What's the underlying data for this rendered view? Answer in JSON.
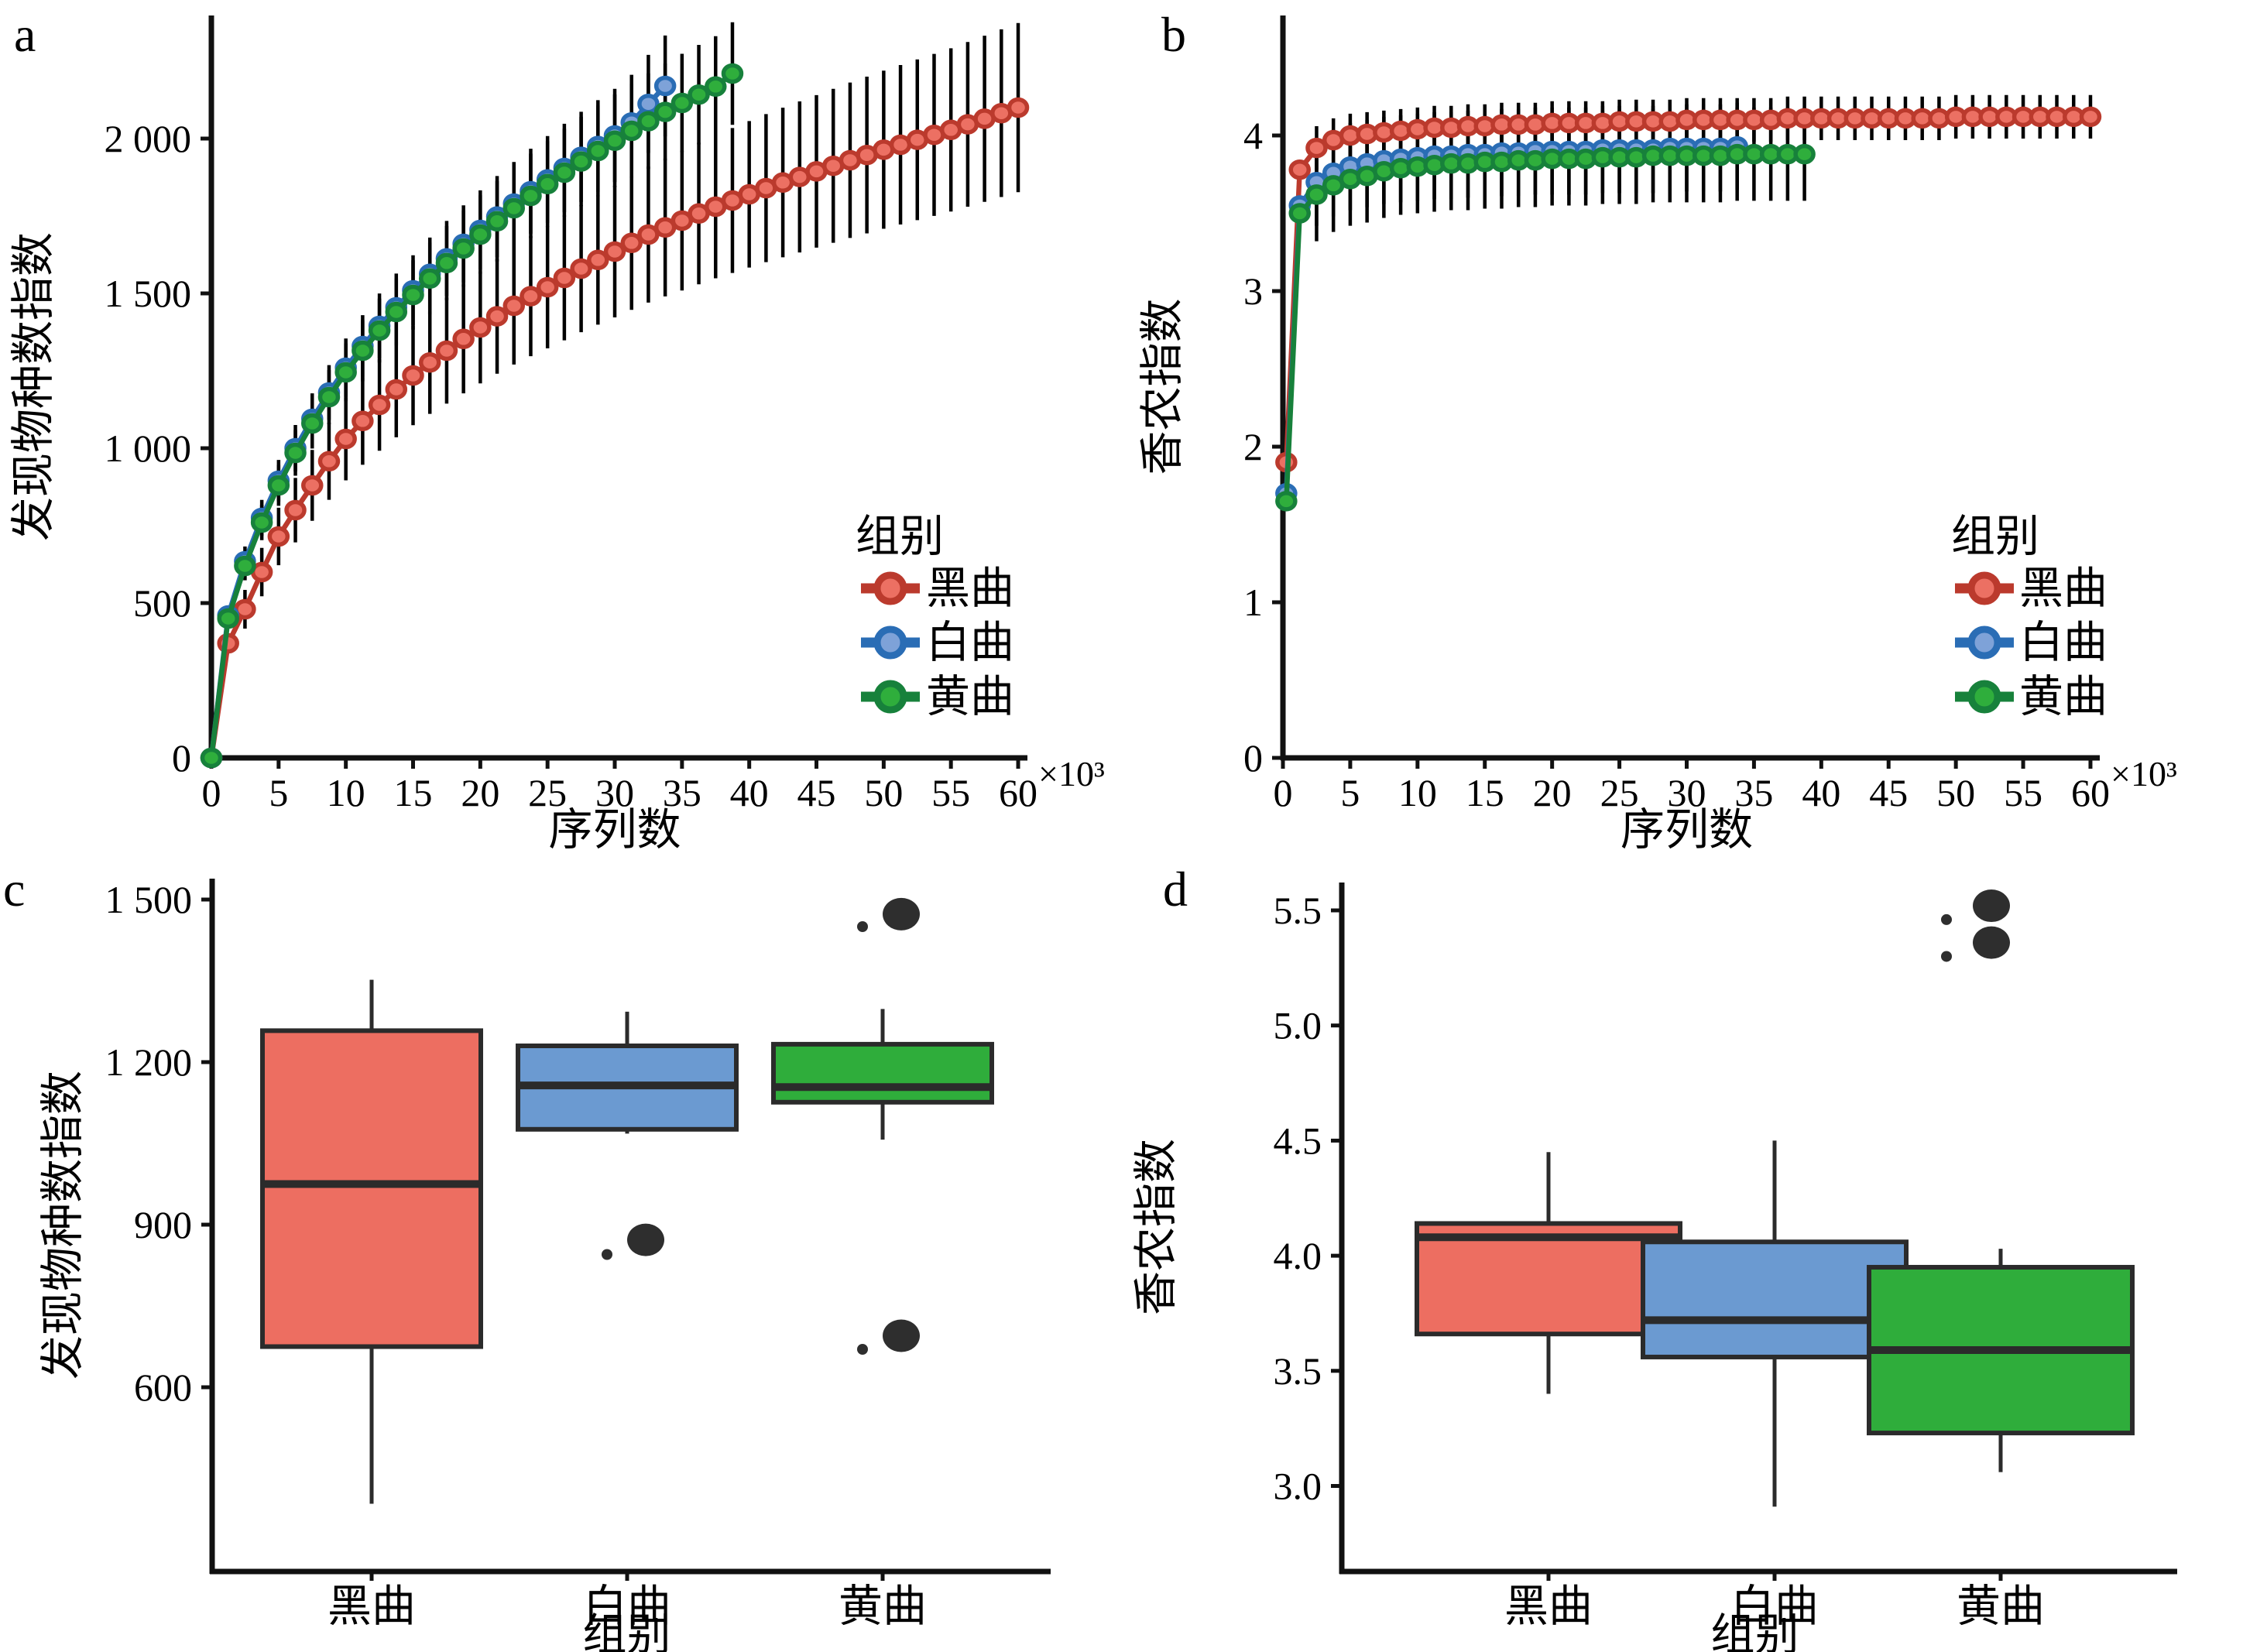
{
  "figure_title": "",
  "panel_letters": [
    "a",
    "b",
    "c",
    "d"
  ],
  "colors": {
    "black_qu_line": "#bb3a2d",
    "black_qu_fill": "#ec7063",
    "black_qu_box": "#ed6e61",
    "white_qu_line": "#2a6db5",
    "white_qu_fill": "#7ea2d8",
    "white_qu_box": "#6b9ad1",
    "yellow_qu_line": "#17813b",
    "yellow_qu_fill": "#2fae3c",
    "yellow_qu_box": "#2fad3b",
    "axis": "#111111",
    "error_bar": "#000000",
    "box_stroke": "#2b2b2b",
    "outlier": "#2e2e2e"
  },
  "chart_data": [
    {
      "panel": "a",
      "letter": "a",
      "type": "line",
      "xlabel": "序列数",
      "ylabel": "发现物种数指数",
      "x_suffix": "×10³",
      "legend_title": "组别",
      "legend_position": "inside-right-lower",
      "grid": false,
      "xlim": [
        0,
        62
      ],
      "ylim": [
        0,
        2430
      ],
      "xticks": [
        0,
        5,
        10,
        15,
        20,
        25,
        30,
        35,
        40,
        45,
        50,
        55,
        60
      ],
      "xtick_labels": [
        "0",
        "5",
        "10",
        "15",
        "20",
        "25",
        "30",
        "35",
        "40",
        "45",
        "50",
        "55",
        "60"
      ],
      "yticks": [
        0,
        500,
        1000,
        1500,
        2000
      ],
      "ytick_labels": [
        "0",
        "500",
        "1 000",
        "1 500",
        "2 000"
      ],
      "series": [
        {
          "name": "黑曲",
          "line_color": "#bb3a2d",
          "fill_color": "#ec7063",
          "err_frac": 0.13,
          "x": [
            0,
            1.25,
            2.5,
            3.75,
            5,
            6.25,
            7.5,
            8.75,
            10,
            11.25,
            12.5,
            13.75,
            15,
            16.25,
            17.5,
            18.75,
            20,
            21.25,
            22.5,
            23.75,
            25,
            26.25,
            27.5,
            28.75,
            30,
            31.25,
            32.5,
            33.75,
            35,
            36.25,
            37.5,
            38.75,
            40,
            41.25,
            42.5,
            43.75,
            45,
            46.25,
            47.5,
            48.75,
            50,
            51.25,
            52.5,
            53.75,
            55,
            56.25,
            57.5,
            58.75,
            60
          ],
          "y": [
            0,
            370,
            480,
            600,
            715,
            800,
            880,
            958,
            1030,
            1088,
            1140,
            1190,
            1235,
            1277,
            1315,
            1353,
            1390,
            1426,
            1460,
            1491,
            1520,
            1550,
            1580,
            1608,
            1635,
            1663,
            1690,
            1713,
            1735,
            1758,
            1780,
            1800,
            1820,
            1840,
            1858,
            1876,
            1894,
            1912,
            1930,
            1947,
            1964,
            1980,
            1996,
            2012,
            2028,
            2046,
            2064,
            2082,
            2100
          ]
        },
        {
          "name": "白曲",
          "line_color": "#2a6db5",
          "fill_color": "#7ea2d8",
          "err_frac": 0.075,
          "x": [
            0,
            1.25,
            2.5,
            3.75,
            5,
            6.25,
            7.5,
            8.75,
            10,
            11.25,
            12.5,
            13.75,
            15,
            16.25,
            17.5,
            18.75,
            20,
            21.25,
            22.5,
            23.75,
            25,
            26.25,
            27.5,
            28.75,
            30,
            31.25,
            32.5,
            33.75
          ],
          "y": [
            0,
            460,
            635,
            775,
            895,
            1000,
            1095,
            1180,
            1260,
            1330,
            1395,
            1455,
            1510,
            1563,
            1613,
            1660,
            1705,
            1748,
            1790,
            1830,
            1868,
            1905,
            1941,
            1976,
            2010,
            2052,
            2112,
            2170
          ]
        },
        {
          "name": "黄曲",
          "line_color": "#17813b",
          "fill_color": "#2fae3c",
          "err_frac": 0.075,
          "x": [
            0,
            1.25,
            2.5,
            3.75,
            5,
            6.25,
            7.5,
            8.75,
            10,
            11.25,
            12.5,
            13.75,
            15,
            16.25,
            17.5,
            18.75,
            20,
            21.25,
            22.5,
            23.75,
            25,
            26.25,
            27.5,
            28.75,
            30,
            31.25,
            32.5,
            33.75,
            35,
            36.25,
            37.5,
            38.75
          ],
          "y": [
            0,
            450,
            620,
            760,
            880,
            985,
            1080,
            1165,
            1245,
            1315,
            1380,
            1440,
            1495,
            1548,
            1598,
            1645,
            1690,
            1733,
            1775,
            1815,
            1853,
            1890,
            1926,
            1960,
            1993,
            2025,
            2056,
            2086,
            2115,
            2142,
            2168,
            2210
          ]
        }
      ]
    },
    {
      "panel": "b",
      "letter": "b",
      "type": "line",
      "xlabel": "序列数",
      "ylabel": "香农指数",
      "x_suffix": "×10³",
      "legend_title": "组别",
      "legend_position": "inside-right-lower",
      "grid": false,
      "xlim": [
        0,
        62
      ],
      "ylim": [
        0,
        4.6
      ],
      "xticks": [
        0,
        5,
        10,
        15,
        20,
        25,
        30,
        35,
        40,
        45,
        50,
        55,
        60
      ],
      "xtick_labels": [
        "0",
        "5",
        "10",
        "15",
        "20",
        "25",
        "30",
        "35",
        "40",
        "45",
        "50",
        "55",
        "60"
      ],
      "yticks": [
        0,
        1,
        2,
        3,
        4
      ],
      "ytick_labels": [
        "0",
        "1",
        "2",
        "3",
        "4"
      ],
      "series": [
        {
          "name": "黑曲",
          "line_color": "#bb3a2d",
          "fill_color": "#ec7063",
          "err_abs": 0.14,
          "x": [
            0.25,
            1.25,
            2.5,
            3.75,
            5,
            6.25,
            7.5,
            8.75,
            10,
            11.25,
            12.5,
            13.75,
            15,
            16.25,
            17.5,
            18.75,
            20,
            21.25,
            22.5,
            23.75,
            25,
            26.25,
            27.5,
            28.75,
            30,
            31.25,
            32.5,
            33.75,
            35,
            36.25,
            37.5,
            38.75,
            40,
            41.25,
            42.5,
            43.75,
            45,
            46.25,
            47.5,
            48.75,
            50,
            51.25,
            52.5,
            53.75,
            55,
            56.25,
            57.5,
            58.75,
            60
          ],
          "y": [
            1.9,
            3.78,
            3.92,
            3.97,
            4.0,
            4.01,
            4.02,
            4.03,
            4.04,
            4.05,
            4.05,
            4.06,
            4.06,
            4.07,
            4.07,
            4.07,
            4.08,
            4.08,
            4.08,
            4.08,
            4.09,
            4.09,
            4.09,
            4.09,
            4.1,
            4.1,
            4.1,
            4.1,
            4.1,
            4.1,
            4.11,
            4.11,
            4.11,
            4.11,
            4.11,
            4.11,
            4.11,
            4.11,
            4.11,
            4.11,
            4.12,
            4.12,
            4.12,
            4.12,
            4.12,
            4.12,
            4.12,
            4.12,
            4.12
          ]
        },
        {
          "name": "白曲",
          "line_color": "#2a6db5",
          "fill_color": "#7ea2d8",
          "err_abs": 0.28,
          "x": [
            0.25,
            1.25,
            2.5,
            3.75,
            5,
            6.25,
            7.5,
            8.75,
            10,
            11.25,
            12.5,
            13.75,
            15,
            16.25,
            17.5,
            18.75,
            20,
            21.25,
            22.5,
            23.75,
            25,
            26.25,
            27.5,
            28.75,
            30,
            31.25,
            32.5,
            33.75
          ],
          "y": [
            1.7,
            3.55,
            3.7,
            3.76,
            3.8,
            3.82,
            3.84,
            3.85,
            3.86,
            3.87,
            3.87,
            3.88,
            3.88,
            3.89,
            3.89,
            3.9,
            3.9,
            3.9,
            3.9,
            3.91,
            3.91,
            3.91,
            3.91,
            3.92,
            3.92,
            3.92,
            3.92,
            3.93
          ]
        },
        {
          "name": "黄曲",
          "line_color": "#17813b",
          "fill_color": "#2fae3c",
          "err_abs": 0.3,
          "x": [
            0.25,
            1.25,
            2.5,
            3.75,
            5,
            6.25,
            7.5,
            8.75,
            10,
            11.25,
            12.5,
            13.75,
            15,
            16.25,
            17.5,
            18.75,
            20,
            21.25,
            22.5,
            23.75,
            25,
            26.25,
            27.5,
            28.75,
            30,
            31.25,
            32.5,
            33.75,
            35,
            36.25,
            37.5,
            38.75
          ],
          "y": [
            1.65,
            3.5,
            3.62,
            3.68,
            3.72,
            3.74,
            3.77,
            3.79,
            3.8,
            3.81,
            3.82,
            3.82,
            3.83,
            3.83,
            3.84,
            3.84,
            3.85,
            3.85,
            3.85,
            3.86,
            3.86,
            3.86,
            3.87,
            3.87,
            3.87,
            3.87,
            3.87,
            3.88,
            3.88,
            3.88,
            3.88,
            3.88
          ]
        }
      ]
    },
    {
      "panel": "c",
      "letter": "c",
      "type": "box",
      "xlabel": "组别",
      "ylabel": "发现物种数指数",
      "grid": false,
      "ylim": [
        260,
        1560
      ],
      "yticks": [
        600,
        900,
        1200,
        1500
      ],
      "ytick_labels": [
        "600",
        "900",
        "1 200",
        "1 500"
      ],
      "categories": [
        "黑曲",
        "白曲",
        "黄曲"
      ],
      "boxes": [
        {
          "name": "黑曲",
          "fill": "#ed6e61",
          "whisker_low": 385,
          "q1": 675,
          "median": 975,
          "q3": 1258,
          "whisker_high": 1352,
          "outliers": []
        },
        {
          "name": "白曲",
          "fill": "#6b9ad1",
          "whisker_low": 1068,
          "q1": 1076,
          "median": 1157,
          "q3": 1230,
          "whisker_high": 1293,
          "outliers": [
            {
              "value": 872,
              "size": "big"
            },
            {
              "value": 845,
              "size": "small"
            }
          ]
        },
        {
          "name": "黄曲",
          "fill": "#2fad3b",
          "whisker_low": 1057,
          "q1": 1126,
          "median": 1154,
          "q3": 1233,
          "whisker_high": 1298,
          "outliers": [
            {
              "value": 1473,
              "size": "big"
            },
            {
              "value": 1450,
              "size": "small"
            },
            {
              "value": 695,
              "size": "big"
            },
            {
              "value": 670,
              "size": "small"
            }
          ]
        }
      ]
    },
    {
      "panel": "d",
      "letter": "d",
      "type": "box",
      "xlabel": "组别",
      "ylabel": "香农指数",
      "grid": false,
      "ylim": [
        2.63,
        5.75
      ],
      "yticks": [
        3.0,
        3.5,
        4.0,
        4.5,
        5.0,
        5.5
      ],
      "ytick_labels": [
        "3.0",
        "3.5",
        "4.0",
        "4.5",
        "5.0",
        "5.5"
      ],
      "categories": [
        "黑曲",
        "白曲",
        "黄曲"
      ],
      "boxes": [
        {
          "name": "黑曲",
          "fill": "#ed6e61",
          "whisker_low": 3.4,
          "q1": 3.66,
          "median": 4.08,
          "q3": 4.14,
          "whisker_high": 4.45,
          "outliers": []
        },
        {
          "name": "白曲",
          "fill": "#6b9ad1",
          "whisker_low": 2.91,
          "q1": 3.56,
          "median": 3.72,
          "q3": 4.06,
          "whisker_high": 4.5,
          "outliers": []
        },
        {
          "name": "黄曲",
          "fill": "#2fad3b",
          "whisker_low": 3.06,
          "q1": 3.23,
          "median": 3.59,
          "q3": 3.95,
          "whisker_high": 4.03,
          "outliers": [
            {
              "value": 5.52,
              "size": "big"
            },
            {
              "value": 5.46,
              "size": "small"
            },
            {
              "value": 5.36,
              "size": "big"
            },
            {
              "value": 5.3,
              "size": "small"
            }
          ]
        }
      ]
    }
  ]
}
